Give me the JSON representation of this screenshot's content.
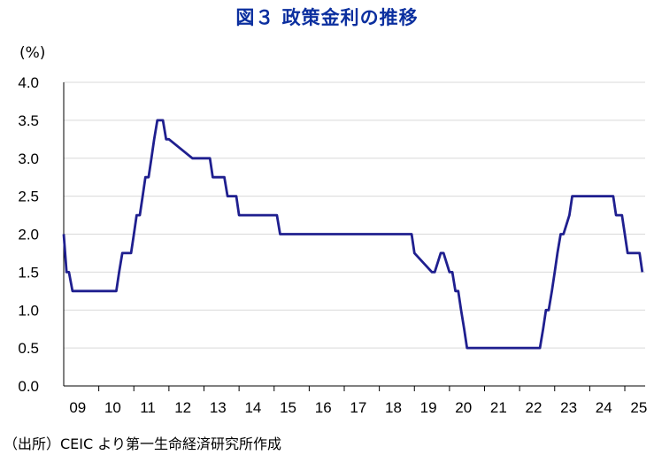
{
  "title": "図３ 政策金利の推移",
  "source": "（出所）CEIC より第一生命経済研究所作成",
  "colors": {
    "title": "#0b2f9f",
    "line": "#1f1f8f",
    "grid": "#d9d9d9",
    "axis": "#000000"
  },
  "chart_data": {
    "type": "line",
    "title": "図３ 政策金利の推移",
    "ylabel": "(%)",
    "xlabel": "",
    "ylim": [
      0,
      4
    ],
    "yticks": [
      "0.0",
      "0.5",
      "1.0",
      "1.5",
      "2.0",
      "2.5",
      "3.0",
      "3.5",
      "4.0"
    ],
    "xticks": [
      "09",
      "10",
      "11",
      "12",
      "13",
      "14",
      "15",
      "16",
      "17",
      "18",
      "19",
      "20",
      "21",
      "22",
      "23",
      "24",
      "25"
    ],
    "grid": true,
    "legend": "none",
    "series": [
      {
        "x": [
          2009.0,
          2009.08,
          2009.15,
          2009.25,
          2009.33,
          2010.42,
          2010.5,
          2010.58,
          2010.67,
          2010.92,
          2011.0,
          2011.08,
          2011.17,
          2011.25,
          2011.33,
          2011.42,
          2011.5,
          2011.58,
          2011.67,
          2011.75,
          2011.83,
          2011.92,
          2012.0,
          2012.67,
          2012.75,
          2013.17,
          2013.25,
          2013.58,
          2013.67,
          2013.92,
          2014.0,
          2015.08,
          2015.17,
          2015.25,
          2018.92,
          2019.0,
          2019.5,
          2019.58,
          2019.75,
          2019.83,
          2020.0,
          2020.08,
          2020.17,
          2020.25,
          2020.33,
          2020.42,
          2020.5,
          2022.5,
          2022.58,
          2022.67,
          2022.75,
          2022.83,
          2022.92,
          2023.0,
          2023.08,
          2023.17,
          2023.25,
          2023.42,
          2023.5,
          2023.58,
          2023.67,
          2024.67,
          2024.75,
          2024.92,
          2025.0,
          2025.08,
          2025.17,
          2025.42,
          2025.5
        ],
        "values": [
          2.0,
          1.5,
          1.5,
          1.25,
          1.25,
          1.25,
          1.25,
          1.5,
          1.75,
          1.75,
          2.0,
          2.25,
          2.25,
          2.5,
          2.75,
          2.75,
          3.0,
          3.25,
          3.5,
          3.5,
          3.5,
          3.25,
          3.25,
          3.0,
          3.0,
          3.0,
          2.75,
          2.75,
          2.5,
          2.5,
          2.25,
          2.25,
          2.0,
          2.0,
          2.0,
          1.75,
          1.5,
          1.5,
          1.75,
          1.75,
          1.5,
          1.5,
          1.25,
          1.25,
          1.0,
          0.75,
          0.5,
          0.5,
          0.5,
          0.75,
          1.0,
          1.0,
          1.25,
          1.5,
          1.75,
          2.0,
          2.0,
          2.25,
          2.5,
          2.5,
          2.5,
          2.5,
          2.25,
          2.25,
          2.0,
          1.75,
          1.75,
          1.75,
          1.5
        ]
      }
    ]
  }
}
